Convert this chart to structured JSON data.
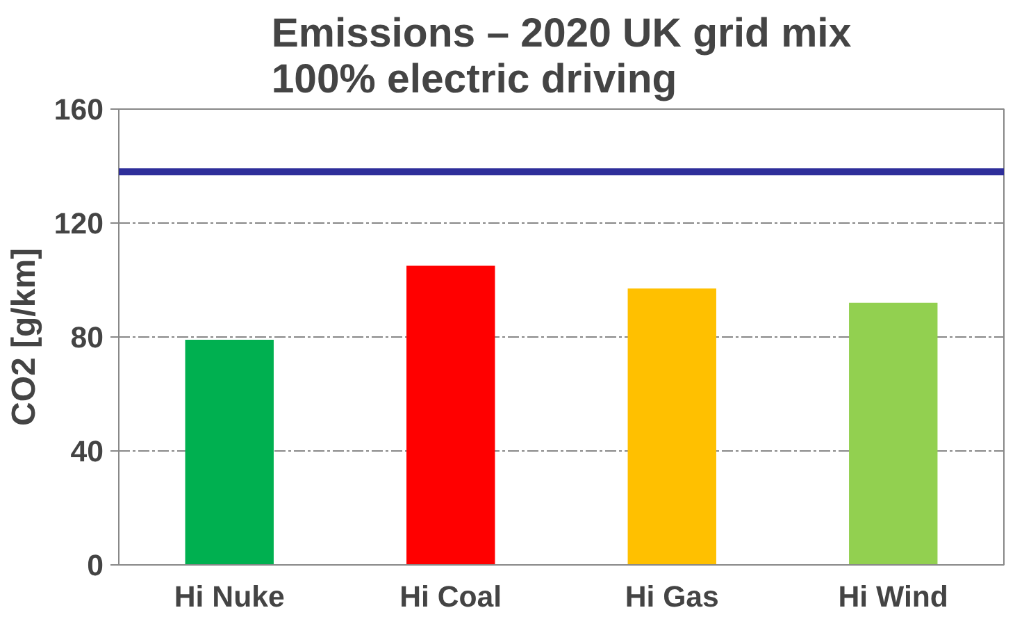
{
  "chart_data": {
    "type": "bar",
    "title": "Emissions – 2020 UK grid mix\n100% electric driving",
    "ylabel": "CO2 [g/km]",
    "categories": [
      "Hi Nuke",
      "Hi Coal",
      "Hi Gas",
      "Hi Wind"
    ],
    "values": [
      79,
      105,
      97,
      92
    ],
    "colors": [
      "#00b050",
      "#ff0000",
      "#ffc000",
      "#92d050"
    ],
    "ylim": [
      0,
      160
    ],
    "yticks": [
      0,
      40,
      80,
      120,
      160
    ],
    "grid": "y",
    "ref_lines": [
      {
        "axis": "y",
        "value": 138,
        "color": "#2e2e9a"
      }
    ]
  }
}
